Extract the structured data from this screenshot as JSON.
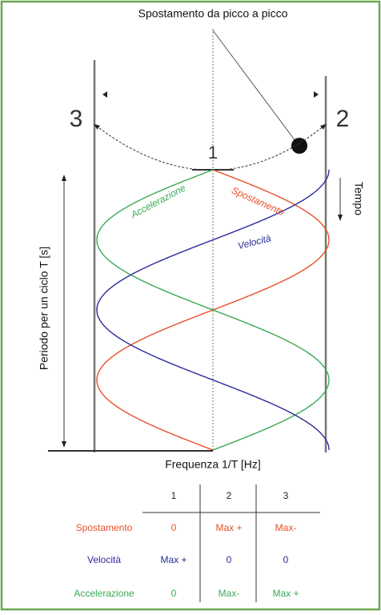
{
  "title": "Spostamento da picco a picco",
  "points": [
    "1",
    "2",
    "3"
  ],
  "y_axis_label": "Periodo per un ciclo T [s]",
  "time_label": "Tempo",
  "x_axis_label": "Frequenza 1/T [Hz]",
  "curve_labels": {
    "acceleration": "Accelerazione",
    "displacement": "Spostamento",
    "velocity": "Velocità"
  },
  "table": {
    "columns": [
      "1",
      "2",
      "3"
    ],
    "rows": [
      {
        "label": "Spostamento",
        "cells": [
          "0",
          "Max +",
          "Max-"
        ]
      },
      {
        "label": "Velocità",
        "cells": [
          "Max +",
          "0",
          "0"
        ]
      },
      {
        "label": "Accelerazione",
        "cells": [
          "0",
          "Max-",
          "Max +"
        ]
      }
    ]
  }
}
